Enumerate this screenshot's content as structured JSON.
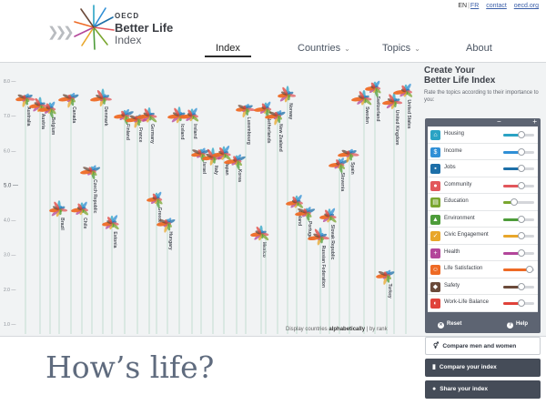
{
  "header": {
    "brand_top": "OECD",
    "brand_name": "Better Life",
    "brand_sub": "Index",
    "lang_en": "EN",
    "lang_sep": "|",
    "lang_fr": "FR",
    "contact": "contact",
    "site": "oecd.org"
  },
  "nav": [
    {
      "label": "Index"
    },
    {
      "label": "Countries"
    },
    {
      "label": "Topics"
    },
    {
      "label": "About"
    }
  ],
  "panel": {
    "title_line1": "Create Your",
    "title_line2": "Better Life Index",
    "subtitle": "Rate the topics according to their importance to you:",
    "minus": "−",
    "plus": "+",
    "reset": "Reset",
    "help": "Help",
    "topics": [
      {
        "label": "Housing",
        "icon": "house-icon",
        "glyph": "⌂",
        "color": "#2aa3c4",
        "value": 0.6
      },
      {
        "label": "Income",
        "icon": "money-icon",
        "glyph": "$",
        "color": "#2f8fd6",
        "value": 0.6
      },
      {
        "label": "Jobs",
        "icon": "briefcase-icon",
        "glyph": "▪",
        "color": "#1d6fa8",
        "value": 0.6
      },
      {
        "label": "Community",
        "icon": "people-icon",
        "glyph": "●",
        "color": "#e2575b",
        "value": 0.6
      },
      {
        "label": "Education",
        "icon": "book-icon",
        "glyph": "▤",
        "color": "#7aa62f",
        "value": 0.35
      },
      {
        "label": "Environment",
        "icon": "tree-icon",
        "glyph": "▲",
        "color": "#4d9c3a",
        "value": 0.6
      },
      {
        "label": "Civic Engagement",
        "icon": "ballot-icon",
        "glyph": "✓",
        "color": "#e8a62a",
        "value": 0.6
      },
      {
        "label": "Health",
        "icon": "cross-icon",
        "glyph": "+",
        "color": "#b3469a",
        "value": 0.6
      },
      {
        "label": "Life Satisfaction",
        "icon": "smiley-icon",
        "glyph": "☺",
        "color": "#ee6a25",
        "value": 0.85
      },
      {
        "label": "Safety",
        "icon": "shield-icon",
        "glyph": "◆",
        "color": "#6b4a3a",
        "value": 0.6
      },
      {
        "label": "Work-Life Balance",
        "icon": "balance-icon",
        "glyph": "◐",
        "color": "#e0423a",
        "value": 0.6
      }
    ]
  },
  "sort_prefix": "Display countries",
  "sort_active": "alphabetically",
  "sort_suffix": "| by rank",
  "buttons": {
    "compare": "Compare men and women",
    "compare_index": "Compare your index",
    "share": "Share your index"
  },
  "headline": "How’s life?",
  "chart_data": {
    "type": "scatter",
    "ylim": [
      1.0,
      8.0
    ],
    "y_ticks": [
      "8.0",
      "7.0",
      "6.0",
      "5.0",
      "4.0",
      "3.0",
      "2.0",
      "1.0"
    ],
    "grid": false,
    "categories": [
      "Australia",
      "Austria",
      "Belgium",
      "Canada",
      "Brazil",
      "Chile",
      "Czech Republic",
      "Denmark",
      "Estonia",
      "Finland",
      "France",
      "Germany",
      "Greece",
      "Hungary",
      "Iceland",
      "Ireland",
      "Israel",
      "Italy",
      "Japan",
      "Korea",
      "Luxembourg",
      "Mexico",
      "Netherlands",
      "New Zealand",
      "Norway",
      "Poland",
      "Portugal",
      "Russian Federation",
      "Slovak Republic",
      "Slovenia",
      "Spain",
      "Sweden",
      "Switzerland",
      "Turkey",
      "United Kingdom",
      "United States"
    ],
    "values": [
      7.5,
      7.3,
      7.2,
      7.5,
      4.3,
      4.3,
      5.4,
      7.5,
      3.9,
      7.0,
      6.9,
      7.0,
      4.6,
      3.9,
      7.0,
      7.0,
      5.9,
      5.8,
      5.9,
      5.7,
      7.2,
      3.6,
      7.2,
      7.0,
      7.6,
      4.5,
      4.2,
      3.5,
      4.1,
      5.6,
      5.9,
      7.5,
      7.8,
      2.4,
      7.4,
      7.7
    ]
  }
}
